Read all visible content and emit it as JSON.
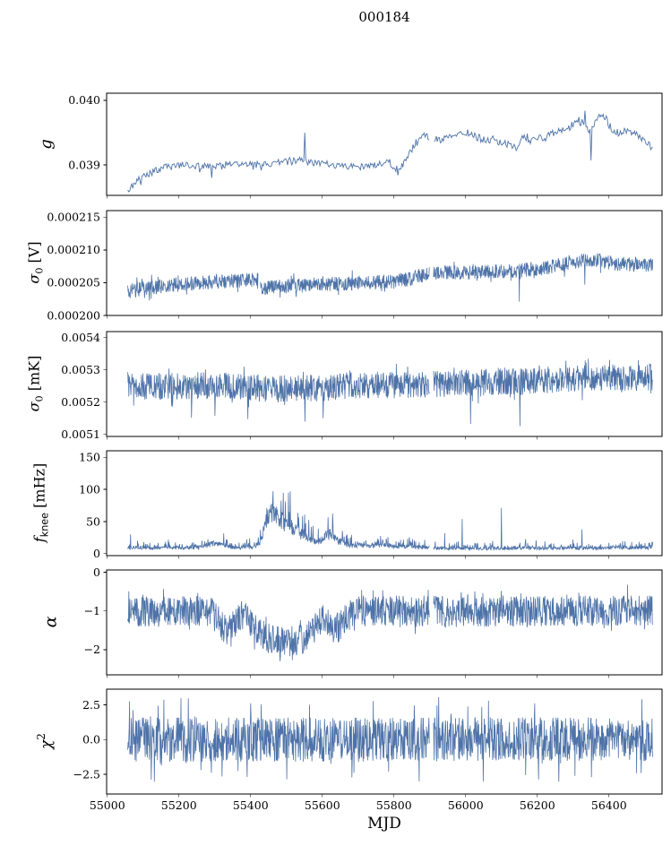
{
  "chart_data": {
    "type": "line",
    "title": "000184",
    "xlabel": "MJD",
    "line_color": "#4e73a8",
    "frame_color": "#000000",
    "x": {
      "range": [
        54998,
        56548
      ],
      "ticks": [
        55000,
        55200,
        55400,
        55600,
        55800,
        56000,
        56200,
        56400
      ],
      "tick_labels": [
        "55000",
        "55200",
        "55400",
        "55600",
        "55800",
        "56000",
        "56200",
        "56400"
      ],
      "data_start": 55057,
      "data_end": 56522,
      "gaps": [
        [
          55899,
          55910
        ]
      ]
    },
    "panels": [
      {
        "name": "g",
        "ylabel": {
          "sym": "g",
          "unit": ""
        },
        "ylim": [
          0.03853,
          0.04011
        ],
        "yticks": [
          0.039,
          0.04
        ],
        "ytick_labels": [
          "0.039",
          "0.040"
        ],
        "n_points": 520,
        "mode": "uniform",
        "noise": 5.5e-05,
        "tail_prob": 0.05,
        "tail_mult": 2.0,
        "trend": [
          [
            55057,
            0.03858
          ],
          [
            55075,
            0.03872
          ],
          [
            55095,
            0.0388
          ],
          [
            55120,
            0.03888
          ],
          [
            55150,
            0.03895
          ],
          [
            55185,
            0.03898
          ],
          [
            55220,
            0.039
          ],
          [
            55260,
            0.03899
          ],
          [
            55300,
            0.03898
          ],
          [
            55340,
            0.039
          ],
          [
            55380,
            0.039
          ],
          [
            55420,
            0.03901
          ],
          [
            55460,
            0.03903
          ],
          [
            55500,
            0.03905
          ],
          [
            55540,
            0.03907
          ],
          [
            55560,
            0.03903
          ],
          [
            55600,
            0.03902
          ],
          [
            55640,
            0.039
          ],
          [
            55680,
            0.03897
          ],
          [
            55720,
            0.03897
          ],
          [
            55760,
            0.03903
          ],
          [
            55785,
            0.03906
          ],
          [
            55805,
            0.03893
          ],
          [
            55825,
            0.03898
          ],
          [
            55845,
            0.0392
          ],
          [
            55865,
            0.03938
          ],
          [
            55885,
            0.03945
          ],
          [
            55905,
            0.03943
          ],
          [
            55925,
            0.03938
          ],
          [
            55945,
            0.03945
          ],
          [
            55965,
            0.0394
          ],
          [
            55985,
            0.03948
          ],
          [
            56005,
            0.03951
          ],
          [
            56025,
            0.03945
          ],
          [
            56045,
            0.0394
          ],
          [
            56065,
            0.03938
          ],
          [
            56085,
            0.03937
          ],
          [
            56105,
            0.03934
          ],
          [
            56125,
            0.03933
          ],
          [
            56140,
            0.03926
          ],
          [
            56160,
            0.03943
          ],
          [
            56180,
            0.03938
          ],
          [
            56205,
            0.03941
          ],
          [
            56230,
            0.03946
          ],
          [
            56255,
            0.03951
          ],
          [
            56280,
            0.03958
          ],
          [
            56305,
            0.03964
          ],
          [
            56325,
            0.03967
          ],
          [
            56345,
            0.0395
          ],
          [
            56365,
            0.03974
          ],
          [
            56385,
            0.03976
          ],
          [
            56405,
            0.03958
          ],
          [
            56425,
            0.0395
          ],
          [
            56445,
            0.03953
          ],
          [
            56465,
            0.0395
          ],
          [
            56485,
            0.03944
          ],
          [
            56505,
            0.03936
          ],
          [
            56522,
            0.03925
          ]
        ],
        "spikes": [
          [
            55292,
            0.0388
          ],
          [
            55550,
            0.0395
          ],
          [
            55812,
            0.03884
          ],
          [
            56332,
            0.03984
          ],
          [
            56350,
            0.03907
          ]
        ]
      },
      {
        "name": "sigma0-v",
        "ylabel": {
          "sym": "σ",
          "sub": "0",
          "unit": " [V]"
        },
        "ylim": [
          0.0002,
          0.000216
        ],
        "yticks": [
          0.0002,
          0.000205,
          0.00021,
          0.000215
        ],
        "ytick_labels": [
          "0.000200",
          "0.000205",
          "0.000210",
          "0.000215"
        ],
        "n_points": 1500,
        "mode": "uniform",
        "noise": 1.1e-06,
        "tail_prob": 0.05,
        "tail_mult": 1.8,
        "gaps": [
          [
            55421,
            55427
          ]
        ],
        "trend": [
          [
            55057,
            0.0002037
          ],
          [
            55100,
            0.0002041
          ],
          [
            55150,
            0.00020445
          ],
          [
            55200,
            0.0002047
          ],
          [
            55250,
            0.00020495
          ],
          [
            55300,
            0.0002051
          ],
          [
            55350,
            0.00020525
          ],
          [
            55400,
            0.00020545
          ],
          [
            55420,
            0.00020553
          ],
          [
            55428,
            0.00020415
          ],
          [
            55460,
            0.0002043
          ],
          [
            55500,
            0.00020445
          ],
          [
            55550,
            0.0002046
          ],
          [
            55600,
            0.00020475
          ],
          [
            55650,
            0.00020487
          ],
          [
            55700,
            0.00020495
          ],
          [
            55750,
            0.00020505
          ],
          [
            55800,
            0.00020525
          ],
          [
            55840,
            0.0002055
          ],
          [
            55870,
            0.00020605
          ],
          [
            55898,
            0.00020635
          ],
          [
            55911,
            0.00020655
          ],
          [
            55960,
            0.0002066
          ],
          [
            56010,
            0.00020655
          ],
          [
            56060,
            0.00020662
          ],
          [
            56110,
            0.00020672
          ],
          [
            56160,
            0.0002069
          ],
          [
            56210,
            0.00020715
          ],
          [
            56260,
            0.00020765
          ],
          [
            56310,
            0.00020815
          ],
          [
            56340,
            0.00020855
          ],
          [
            56370,
            0.0002084
          ],
          [
            56400,
            0.00020805
          ],
          [
            56430,
            0.00020785
          ],
          [
            56460,
            0.00020782
          ],
          [
            56490,
            0.00020775
          ],
          [
            56522,
            0.00020765
          ]
        ],
        "spikes": [
          [
            55872,
            0.0002068
          ],
          [
            56150,
            0.0002021
          ],
          [
            56332,
            0.0002047
          ]
        ]
      },
      {
        "name": "sigma0-mk",
        "ylabel": {
          "sym": "σ",
          "sub": "0",
          "unit": " [mK]"
        },
        "ylim": [
          0.005094,
          0.005419
        ],
        "yticks": [
          0.0051,
          0.0052,
          0.0053,
          0.0054
        ],
        "ytick_labels": [
          "0.0051",
          "0.0052",
          "0.0053",
          "0.0054"
        ],
        "n_points": 1500,
        "mode": "uniform",
        "noise": 4.2e-05,
        "tail_prob": 0.06,
        "tail_mult": 1.6,
        "trend": [
          [
            55057,
            0.005255
          ],
          [
            55120,
            0.005248
          ],
          [
            55180,
            0.00525
          ],
          [
            55240,
            0.005252
          ],
          [
            55300,
            0.005249
          ],
          [
            55360,
            0.00525
          ],
          [
            55420,
            0.005243
          ],
          [
            55460,
            0.005239
          ],
          [
            55500,
            0.005243
          ],
          [
            55540,
            0.005247
          ],
          [
            55580,
            0.005244
          ],
          [
            55620,
            0.005247
          ],
          [
            55660,
            0.005251
          ],
          [
            55700,
            0.005252
          ],
          [
            55750,
            0.005254
          ],
          [
            55800,
            0.005253
          ],
          [
            55850,
            0.005255
          ],
          [
            55898,
            0.005256
          ],
          [
            55911,
            0.005257
          ],
          [
            55960,
            0.005259
          ],
          [
            56010,
            0.005261
          ],
          [
            56060,
            0.005263
          ],
          [
            56110,
            0.005266
          ],
          [
            56160,
            0.005264
          ],
          [
            56210,
            0.005268
          ],
          [
            56260,
            0.00527
          ],
          [
            56310,
            0.005273
          ],
          [
            56360,
            0.005274
          ],
          [
            56410,
            0.005275
          ],
          [
            56460,
            0.005276
          ],
          [
            56522,
            0.005278
          ]
        ],
        "spikes": [
          [
            55235,
            0.005152
          ],
          [
            55300,
            0.005158
          ],
          [
            55392,
            0.005148
          ],
          [
            55552,
            0.00514
          ],
          [
            55602,
            0.00515
          ],
          [
            56014,
            0.005133
          ],
          [
            56152,
            0.005126
          ],
          [
            56342,
            0.005335
          ],
          [
            56482,
            0.00533
          ]
        ]
      },
      {
        "name": "fknee",
        "ylabel": {
          "sym": "f",
          "sub": "knee",
          "unit": " [mHz]"
        },
        "ylim": [
          -3,
          160
        ],
        "yticks": [
          0,
          50,
          100,
          150
        ],
        "ytick_labels": [
          "0",
          "50",
          "100",
          "150"
        ],
        "n_points": 1500,
        "mode": "positive",
        "clamp": [
          0,
          97
        ],
        "trend": [
          [
            55057,
            9
          ],
          [
            55090,
            9
          ],
          [
            55150,
            9
          ],
          [
            55220,
            9
          ],
          [
            55265,
            10
          ],
          [
            55285,
            14
          ],
          [
            55300,
            16
          ],
          [
            55315,
            14
          ],
          [
            55335,
            11
          ],
          [
            55360,
            9
          ],
          [
            55395,
            10
          ],
          [
            55415,
            12
          ],
          [
            55428,
            20
          ],
          [
            55440,
            45
          ],
          [
            55452,
            58
          ],
          [
            55462,
            63
          ],
          [
            55472,
            60
          ],
          [
            55482,
            52
          ],
          [
            55495,
            46
          ],
          [
            55508,
            44
          ],
          [
            55520,
            40
          ],
          [
            55532,
            34
          ],
          [
            55545,
            30
          ],
          [
            55558,
            24
          ],
          [
            55572,
            20
          ],
          [
            55585,
            17
          ],
          [
            55598,
            22
          ],
          [
            55610,
            28
          ],
          [
            55622,
            30
          ],
          [
            55632,
            26
          ],
          [
            55645,
            20
          ],
          [
            55658,
            16
          ],
          [
            55672,
            13
          ],
          [
            55690,
            12
          ],
          [
            55705,
            13
          ],
          [
            55720,
            12
          ],
          [
            55740,
            12
          ],
          [
            55760,
            14
          ],
          [
            55775,
            13
          ],
          [
            55795,
            11
          ],
          [
            55815,
            10
          ],
          [
            55840,
            11
          ],
          [
            55865,
            10
          ],
          [
            55895,
            9
          ],
          [
            55915,
            8
          ],
          [
            55960,
            8
          ],
          [
            56010,
            8
          ],
          [
            56060,
            8
          ],
          [
            56110,
            8
          ],
          [
            56160,
            9
          ],
          [
            56210,
            8
          ],
          [
            56260,
            8
          ],
          [
            56310,
            9
          ],
          [
            56360,
            8
          ],
          [
            56410,
            9
          ],
          [
            56460,
            9
          ],
          [
            56522,
            9
          ]
        ],
        "spikes": [
          [
            55065,
            30
          ],
          [
            55941,
            32
          ],
          [
            55990,
            54
          ],
          [
            56100,
            71
          ],
          [
            56325,
            38
          ]
        ]
      },
      {
        "name": "alpha",
        "ylabel": {
          "sym": "α",
          "unit": ""
        },
        "ylim": [
          -2.65,
          0.06
        ],
        "yticks": [
          0,
          -1,
          -2
        ],
        "ytick_labels": [
          "0",
          "−1",
          "−2"
        ],
        "n_points": 1500,
        "mode": "uniform",
        "noise": 0.4,
        "tail_prob": 0.06,
        "tail_mult": 1.5,
        "clamp": [
          -2.35,
          -0.25
        ],
        "trend": [
          [
            55057,
            -1.0
          ],
          [
            55150,
            -1.02
          ],
          [
            55240,
            -1.0
          ],
          [
            55290,
            -1.02
          ],
          [
            55310,
            -1.25
          ],
          [
            55330,
            -1.5
          ],
          [
            55350,
            -1.35
          ],
          [
            55370,
            -1.12
          ],
          [
            55385,
            -1.15
          ],
          [
            55400,
            -1.3
          ],
          [
            55420,
            -1.55
          ],
          [
            55445,
            -1.7
          ],
          [
            55470,
            -1.78
          ],
          [
            55500,
            -1.78
          ],
          [
            55530,
            -1.75
          ],
          [
            55555,
            -1.68
          ],
          [
            55575,
            -1.55
          ],
          [
            55590,
            -1.35
          ],
          [
            55605,
            -1.22
          ],
          [
            55618,
            -1.35
          ],
          [
            55632,
            -1.5
          ],
          [
            55648,
            -1.42
          ],
          [
            55662,
            -1.25
          ],
          [
            55680,
            -1.08
          ],
          [
            55710,
            -1.0
          ],
          [
            55800,
            -1.0
          ],
          [
            55900,
            -1.0
          ],
          [
            56000,
            -1.02
          ],
          [
            56100,
            -1.0
          ],
          [
            56200,
            -1.0
          ],
          [
            56300,
            -1.0
          ],
          [
            56400,
            -1.0
          ],
          [
            56522,
            -1.0
          ]
        ],
        "spikes": [
          [
            55482,
            -2.3
          ],
          [
            55516,
            -2.27
          ],
          [
            56452,
            -0.32
          ]
        ]
      },
      {
        "name": "chi2",
        "ylabel": {
          "sym": "χ",
          "sup": "2",
          "unit": ""
        },
        "ylim": [
          -3.92,
          3.63
        ],
        "yticks": [
          -2.5,
          0.0,
          2.5
        ],
        "ytick_labels": [
          "−2.5",
          "0.0",
          "2.5"
        ],
        "n_points": 1500,
        "mode": "uniform",
        "noise": 1.6,
        "tail_prob": 0.06,
        "tail_mult": 1.9,
        "clamp": [
          -3.3,
          3.2
        ],
        "trend": [
          [
            55057,
            0
          ],
          [
            56522,
            0
          ]
        ],
        "spikes": [
          [
            55062,
            2.75
          ],
          [
            55925,
            3.05
          ],
          [
            56492,
            2.9
          ]
        ]
      }
    ]
  }
}
